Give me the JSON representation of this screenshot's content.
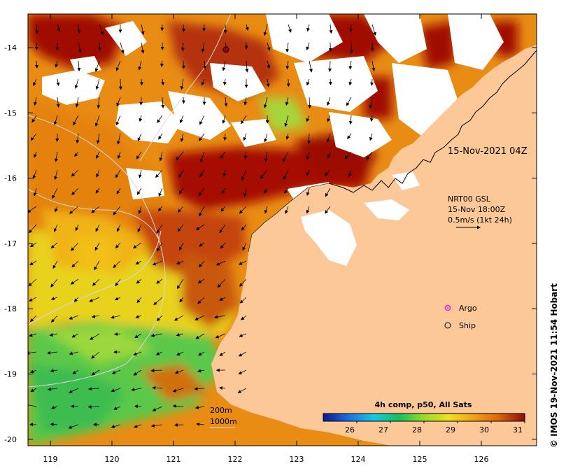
{
  "map": {
    "frame_date": "15-Nov-2021 04Z",
    "current_product": "NRT00 GSL",
    "current_time": "15-Nov 18:00Z",
    "vector_scale": "0.5m/s (1kt 24h)",
    "legend": {
      "argo_label": "Argo",
      "ship_label": "Ship",
      "argo_color": "#e020e0",
      "ship_color": "#000000"
    },
    "contours": [
      "200m",
      "1000m"
    ],
    "colorbar": {
      "title": "4h comp, p50, All Sats",
      "ticks": [
        "26",
        "27",
        "28",
        "29",
        "30",
        "31"
      ],
      "stops": [
        "#0a1a8a",
        "#1e6ee0",
        "#16c8e6",
        "#14c060",
        "#96dc28",
        "#f0e020",
        "#f0a018",
        "#d8640c",
        "#8c0c0c"
      ],
      "min": 25,
      "max": 31
    },
    "axes": {
      "lon_ticks": [
        "119",
        "120",
        "121",
        "122",
        "123",
        "124",
        "125",
        "126"
      ],
      "lat_ticks": [
        "-14",
        "-15",
        "-16",
        "-17",
        "-18",
        "-19",
        "-20"
      ]
    },
    "credit": "© IMOS 19-Nov-2021 11:54 Hobart",
    "colors": {
      "land": "#fcc898",
      "no_data": "#ffffff",
      "hot": "#a00a05",
      "warm": "#dc6a0a",
      "mild": "#f0b414",
      "cool_yellow": "#e6e628",
      "green": "#6cd048"
    }
  }
}
